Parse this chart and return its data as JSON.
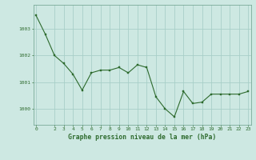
{
  "x": [
    0,
    1,
    2,
    3,
    4,
    5,
    6,
    7,
    8,
    9,
    10,
    11,
    12,
    13,
    14,
    15,
    16,
    17,
    18,
    19,
    20,
    21,
    22,
    23
  ],
  "y": [
    1003.5,
    1002.8,
    1002.0,
    1001.7,
    1001.3,
    1000.7,
    1001.35,
    1001.45,
    1001.45,
    1001.55,
    1001.35,
    1001.65,
    1001.55,
    1000.45,
    1000.0,
    999.7,
    1000.65,
    1000.2,
    1000.25,
    1000.55,
    1000.55,
    1000.55,
    1000.55,
    1000.65
  ],
  "line_color": "#2d6a2d",
  "marker_color": "#2d6a2d",
  "bg_color": "#cde8e2",
  "grid_color": "#a8cfc8",
  "border_color": "#7aaa99",
  "xlabel": "Graphe pression niveau de la mer (hPa)",
  "xlabel_color": "#2d6a2d",
  "tick_color": "#2d6a2d",
  "ylim": [
    999.4,
    1003.9
  ],
  "yticks": [
    1000,
    1001,
    1002,
    1003
  ],
  "xticks": [
    0,
    2,
    3,
    4,
    5,
    6,
    7,
    8,
    9,
    10,
    11,
    12,
    13,
    14,
    15,
    16,
    17,
    18,
    19,
    20,
    21,
    22,
    23
  ],
  "figsize": [
    3.2,
    2.0
  ],
  "dpi": 100
}
